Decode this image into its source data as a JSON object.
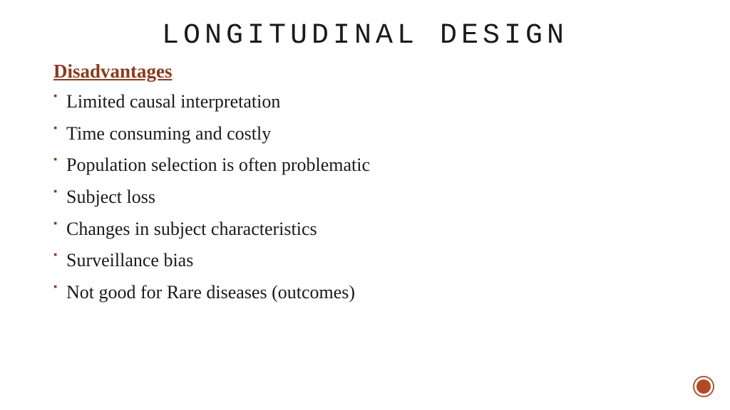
{
  "title": {
    "text": "LONGITUDINAL  DESIGN",
    "color": "#1a1a1a",
    "fontsize": 40
  },
  "subheading": {
    "text": "Disadvantages",
    "color": "#8b3a1f",
    "fontsize": 27
  },
  "bullets": {
    "items": [
      "Limited causal interpretation",
      "Time consuming and costly",
      "Population selection is often problematic",
      "Subject loss",
      "Changes in subject characteristics",
      "Surveillance bias",
      "Not good for Rare diseases (outcomes)"
    ],
    "text_color": "#1a1a1a",
    "bullet_color": "#8b3a1f",
    "fontsize": 26,
    "line_height": 1.45
  },
  "badge": {
    "outer_border_color": "#a85a38",
    "outer_fill": "#ffffff",
    "inner_fill": "#b24a24"
  },
  "background_color": "#ffffff"
}
